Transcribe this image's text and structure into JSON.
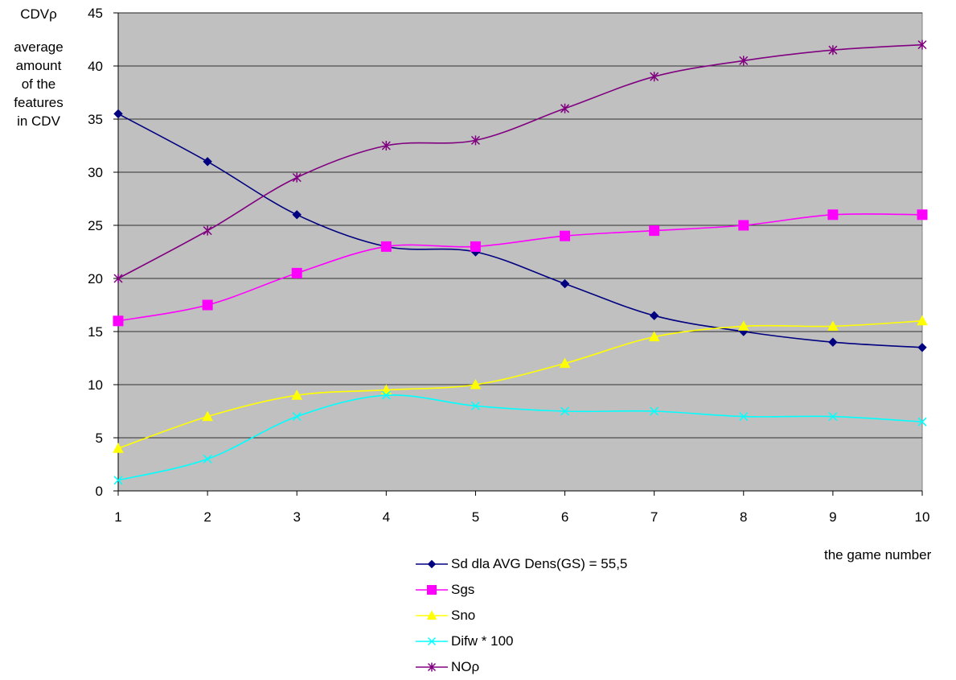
{
  "chart_data": {
    "type": "line",
    "ylabel": "CDVρ",
    "ylabel_description": [
      "average",
      "amount",
      "of the",
      "features",
      "in CDV"
    ],
    "xlabel": "the game number",
    "x": [
      1,
      2,
      3,
      4,
      5,
      6,
      7,
      8,
      9,
      10
    ],
    "ylim": [
      0,
      45
    ],
    "yticks": [
      0,
      5,
      10,
      15,
      20,
      25,
      30,
      35,
      40,
      45
    ],
    "grid": "horizontal",
    "plot_background": "#c0c0c0",
    "legend_position": "bottom-center",
    "series": [
      {
        "name": "Sd dla AVG Dens(GS) = 55,5",
        "color": "#000080",
        "marker": "diamond",
        "values": [
          35.5,
          31,
          26,
          23,
          22.5,
          19.5,
          16.5,
          15,
          14,
          13.5
        ]
      },
      {
        "name": "Sgs",
        "color": "#ff00ff",
        "marker": "square",
        "values": [
          16,
          17.5,
          20.5,
          23,
          23,
          24,
          24.5,
          25,
          26,
          26
        ]
      },
      {
        "name": "Sno",
        "color": "#ffff00",
        "marker": "triangle",
        "values": [
          4,
          7,
          9,
          9.5,
          10,
          12,
          14.5,
          15.5,
          15.5,
          16
        ]
      },
      {
        "name": "Difw * 100",
        "color": "#00ffff",
        "marker": "x",
        "values": [
          1,
          3,
          7,
          9,
          8,
          7.5,
          7.5,
          7,
          7,
          6.5
        ]
      },
      {
        "name": "NOρ",
        "color": "#800080",
        "marker": "star",
        "values": [
          20,
          24.5,
          29.5,
          32.5,
          33,
          36,
          39,
          40.5,
          41.5,
          42
        ]
      }
    ]
  }
}
